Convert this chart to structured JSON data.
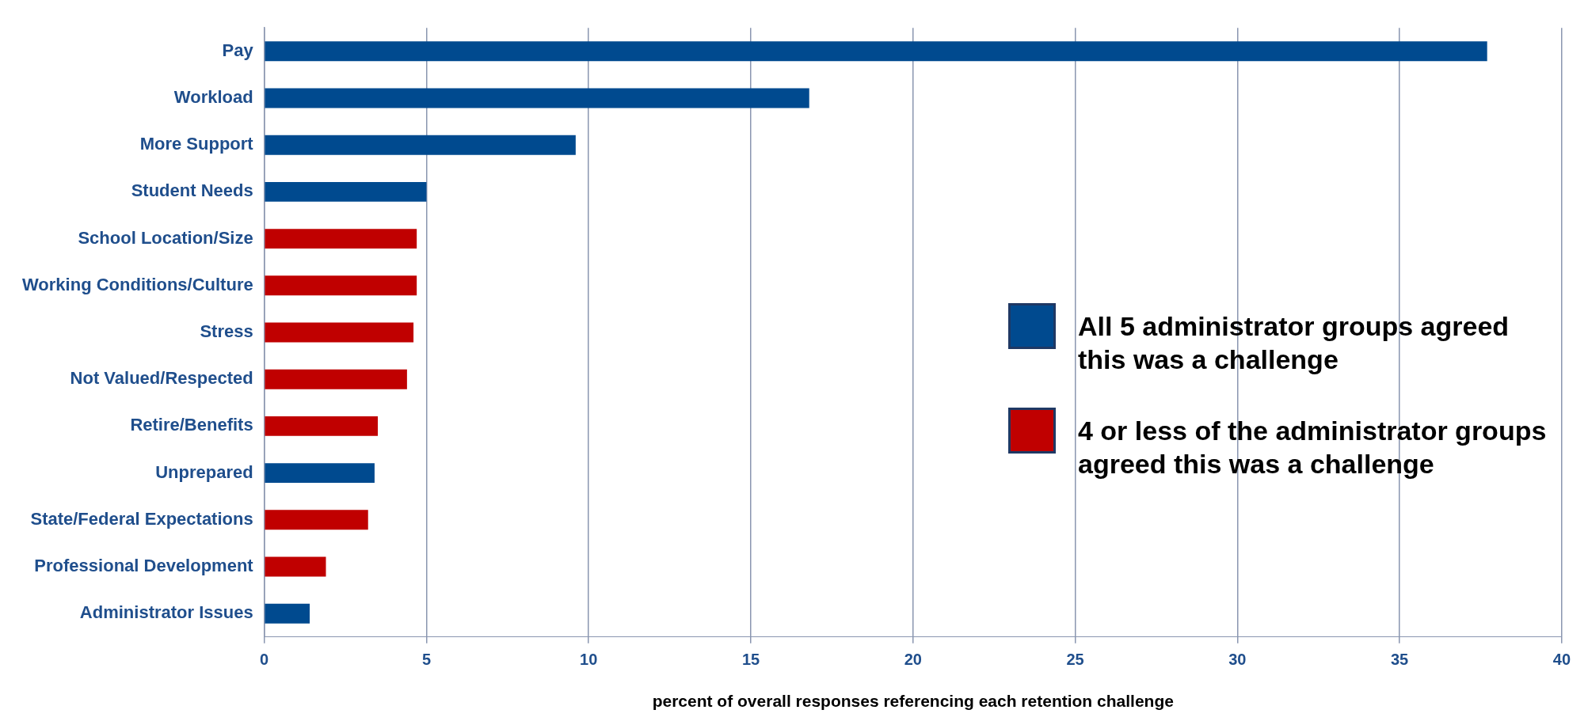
{
  "chart_data": {
    "type": "bar",
    "orientation": "horizontal",
    "stacked": true,
    "xlabel": "percent of overall responses referencing each retention challenge",
    "categories": [
      "Pay",
      "Workload",
      "More Support",
      "Student Needs",
      "School Location/Size",
      "Working Conditions/Culture",
      "Stress",
      "Not Valued/Respected",
      "Retire/Benefits",
      "Unprepared",
      "State/Federal Expectations",
      "Professional Development",
      "Administrator Issues"
    ],
    "series": [
      {
        "name": "All 5 administrator groups agreed this was a challenge",
        "color": "#004a8f",
        "values": [
          37.7,
          16.8,
          9.6,
          5.0,
          null,
          null,
          null,
          null,
          null,
          3.4,
          null,
          null,
          1.4
        ]
      },
      {
        "name": "4 or less of the administrator groups agreed this was a challenge",
        "color": "#c00000",
        "values": [
          null,
          null,
          null,
          null,
          4.7,
          4.7,
          4.6,
          4.4,
          3.5,
          null,
          3.2,
          1.9,
          null
        ]
      }
    ],
    "xlim": [
      0,
      40
    ],
    "xticks": [
      0,
      5,
      10,
      15,
      20,
      25,
      30,
      35,
      40
    ],
    "grid": "x",
    "legend": "right"
  }
}
